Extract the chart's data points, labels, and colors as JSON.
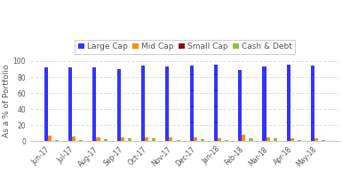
{
  "categories": [
    "Jun-17",
    "Jul-17",
    "Aug-17",
    "Sep-17",
    "Oct-17",
    "Nov-17",
    "Dec-17",
    "Jan-18",
    "Feb-18",
    "Mar-18",
    "Apr-18",
    "May-18"
  ],
  "series": {
    "Large Cap": [
      92,
      92,
      92,
      90,
      94,
      93,
      94,
      95,
      89,
      93,
      95,
      94
    ],
    "Mid Cap": [
      7,
      6,
      5,
      5,
      5,
      5,
      5,
      4,
      8,
      5,
      4,
      4
    ],
    "Small Cap": [
      0.5,
      0.5,
      0.5,
      0.5,
      0.5,
      0.5,
      0.5,
      0.5,
      0.5,
      0.5,
      0.5,
      0.5
    ],
    "Cash & Debt": [
      1,
      1,
      2,
      4,
      4,
      1,
      2,
      1,
      3,
      3,
      1,
      1
    ]
  },
  "colors": {
    "Large Cap": "#3333FF",
    "Mid Cap": "#FF8C00",
    "Small Cap": "#8B1010",
    "Cash & Debt": "#90C040"
  },
  "ylabel": "As a % of Portfolio",
  "ylim": [
    0,
    100
  ],
  "yticks": [
    0,
    20,
    40,
    60,
    80,
    100
  ],
  "background_color": "#FFFFFF",
  "grid_color": "#DDDDDD",
  "bar_width": 0.15,
  "legend_fontsize": 6.5,
  "axis_fontsize": 6.5,
  "tick_fontsize": 5.5
}
